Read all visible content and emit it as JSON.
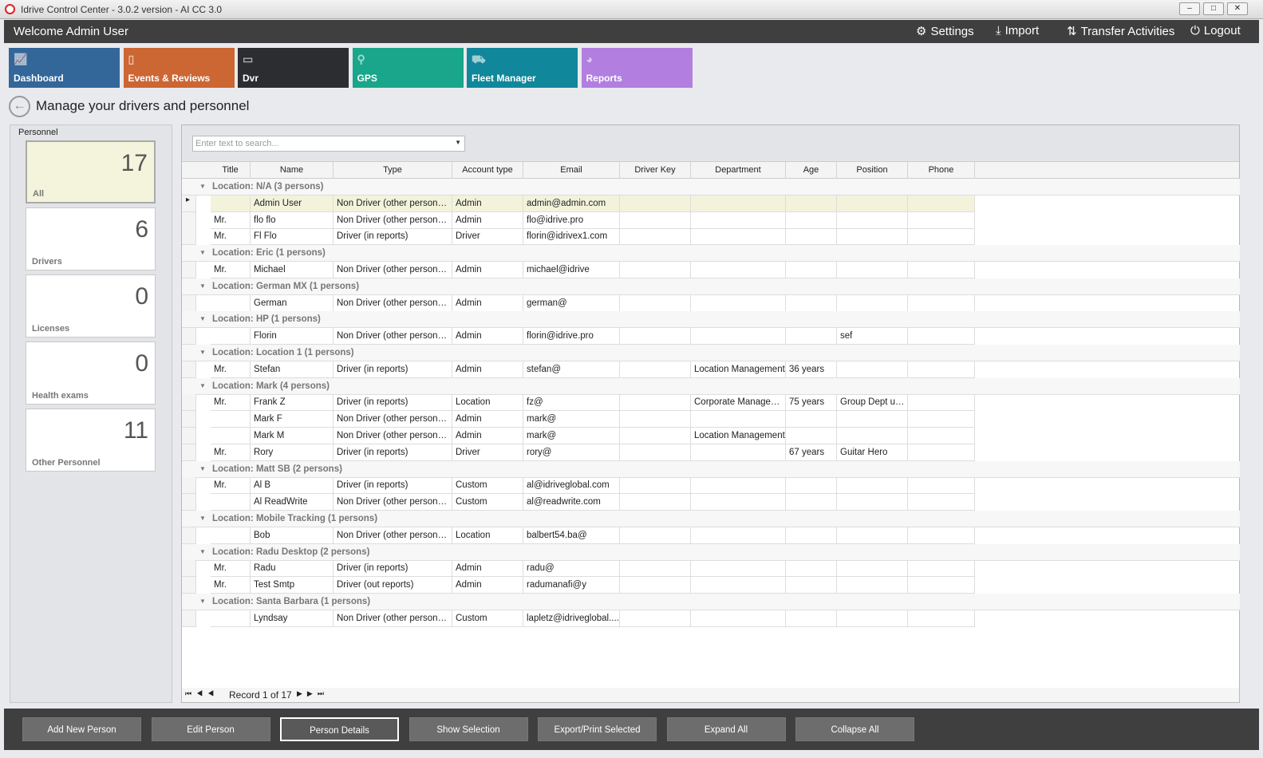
{
  "window": {
    "title": "Idrive Control Center - 3.0.2 version - AI CC 3.0",
    "minimize": "–",
    "maximize": "□",
    "close": "✕"
  },
  "topbar": {
    "welcome": "Welcome Admin User",
    "settings": "Settings",
    "import": "Import",
    "transfer": "Transfer Activities",
    "logout": "Logout"
  },
  "tiles": [
    {
      "label": "Dashboard",
      "color": "#336699",
      "icon": "chart-icon"
    },
    {
      "label": "Events & Reviews",
      "color": "#cc6633",
      "icon": "clipboard-icon"
    },
    {
      "label": "Dvr",
      "color": "#2b2d31",
      "icon": "dvr-icon"
    },
    {
      "label": "GPS",
      "color": "#19a68a",
      "icon": "map-pin-icon"
    },
    {
      "label": "Fleet Manager",
      "color": "#10879a",
      "icon": "vehicles-icon"
    },
    {
      "label": "Reports",
      "color": "#b27ee0",
      "icon": "pie-chart-icon"
    }
  ],
  "page_title": "Manage your drivers and personnel",
  "personnel": {
    "header": "Personnel",
    "cards": [
      {
        "count": "17",
        "label": "All"
      },
      {
        "count": "6",
        "label": "Drivers"
      },
      {
        "count": "0",
        "label": "Licenses"
      },
      {
        "count": "0",
        "label": "Health exams"
      },
      {
        "count": "11",
        "label": "Other Personnel"
      }
    ]
  },
  "search": {
    "placeholder": "Enter text to search..."
  },
  "columns": [
    "Title",
    "Name",
    "Type",
    "Account type",
    "Email",
    "Driver Key",
    "Department",
    "Age",
    "Position",
    "Phone"
  ],
  "groups": [
    {
      "label": "Location: N/A (3 persons)",
      "rows": [
        [
          "",
          "Admin User",
          "Non Driver (other personnel)",
          "Admin",
          "admin@admin.com",
          "",
          "",
          "",
          "",
          ""
        ],
        [
          "Mr.",
          "flo flo",
          "Non Driver (other personnel)",
          "Admin",
          "flo@idrive.pro",
          "",
          "",
          "",
          "",
          ""
        ],
        [
          "Mr.",
          "Fl Flo",
          "Driver (in reports)",
          "Driver",
          "florin@idrivex1.com",
          "",
          "",
          "",
          "",
          ""
        ]
      ]
    },
    {
      "label": "Location: Eric (1 persons)",
      "rows": [
        [
          "Mr.",
          "Michael",
          "Non Driver (other personnel)",
          "Admin",
          "michael@idrive",
          "",
          "",
          "",
          "",
          ""
        ]
      ]
    },
    {
      "label": "Location: German MX (1 persons)",
      "rows": [
        [
          "",
          "German",
          "Non Driver (other personnel)",
          "Admin",
          "german@",
          "",
          "",
          "",
          "",
          ""
        ]
      ]
    },
    {
      "label": "Location: HP (1 persons)",
      "rows": [
        [
          "",
          "Florin",
          "Non Driver (other personnel)",
          "Admin",
          "florin@idrive.pro",
          "",
          "",
          "",
          "sef",
          ""
        ]
      ]
    },
    {
      "label": "Location: Location 1 (1 persons)",
      "rows": [
        [
          "Mr.",
          "Stefan",
          "Driver (in reports)",
          "Admin",
          "stefan@",
          "",
          "Location Management",
          "36 years",
          "",
          ""
        ]
      ]
    },
    {
      "label": "Location: Mark (4 persons)",
      "rows": [
        [
          "Mr.",
          "Frank Z",
          "Driver (in reports)",
          "Location",
          "fz@",
          "",
          "Corporate Managem...",
          "75 years",
          "Group Dept user",
          ""
        ],
        [
          "",
          "Mark F",
          "Non Driver (other personnel)",
          "Admin",
          "mark@",
          "",
          "",
          "",
          "",
          ""
        ],
        [
          "",
          "Mark M",
          "Non Driver (other personnel)",
          "Admin",
          "mark@",
          "",
          "Location Management",
          "",
          "",
          ""
        ],
        [
          "Mr.",
          "Rory",
          "Driver (in reports)",
          "Driver",
          "rory@",
          "",
          "",
          "67 years",
          "Guitar Hero",
          ""
        ]
      ]
    },
    {
      "label": "Location: Matt SB (2 persons)",
      "rows": [
        [
          "Mr.",
          "Al B",
          "Driver (in reports)",
          "Custom",
          "al@idriveglobal.com",
          "",
          "",
          "",
          "",
          ""
        ],
        [
          "",
          "Al ReadWrite",
          "Non Driver (other personnel)",
          "Custom",
          "al@readwrite.com",
          "",
          "",
          "",
          "",
          ""
        ]
      ]
    },
    {
      "label": "Location: Mobile Tracking (1 persons)",
      "rows": [
        [
          "",
          "Bob",
          "Non Driver (other personnel)",
          "Location",
          "balbert54.ba@",
          "",
          "",
          "",
          "",
          ""
        ]
      ]
    },
    {
      "label": "Location: Radu Desktop (2 persons)",
      "rows": [
        [
          "Mr.",
          "Radu",
          "Driver (in reports)",
          "Admin",
          "radu@",
          "",
          "",
          "",
          "",
          ""
        ],
        [
          "Mr.",
          "Test Smtp",
          "Driver (out reports)",
          "Admin",
          "radumanafi@y",
          "",
          "",
          "",
          "",
          ""
        ]
      ]
    },
    {
      "label": "Location: Santa Barbara (1 persons)",
      "rows": [
        [
          "",
          "Lyndsay",
          "Non Driver (other personnel)",
          "Custom",
          "lapletz@idriveglobal....",
          "",
          "",
          "",
          "",
          ""
        ]
      ]
    }
  ],
  "pager": {
    "record": "Record 1 of 17"
  },
  "buttons": [
    "Add New Person",
    "Edit Person",
    "Person Details",
    "Show Selection",
    "Export/Print Selected",
    "Expand All",
    "Collapse All"
  ]
}
